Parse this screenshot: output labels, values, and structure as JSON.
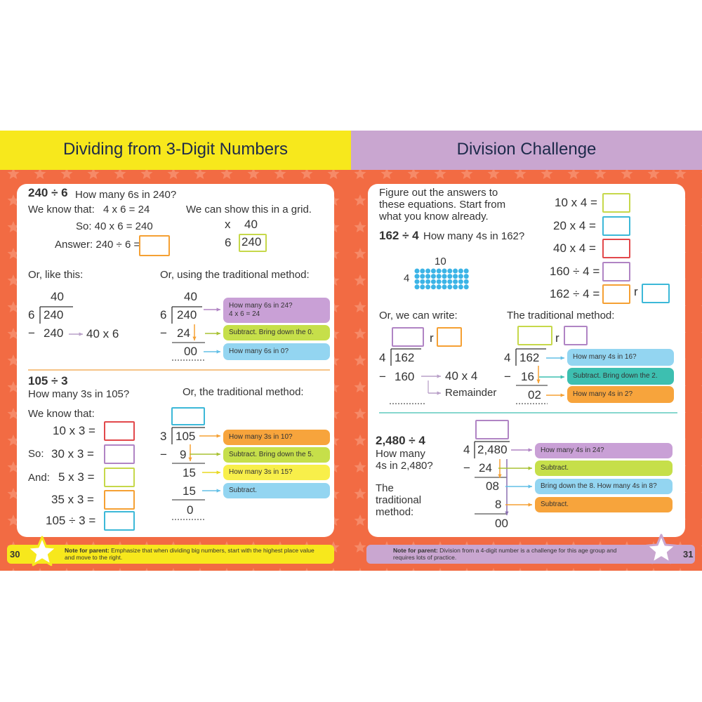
{
  "left_page": {
    "title": "Dividing from 3-Digit Numbers",
    "page_number": "30",
    "note": {
      "label": "Note for parent:",
      "text": "Emphasize that when dividing big numbers, start with the highest place value and move to the right."
    },
    "example_1": {
      "problem": "240 ÷ 6",
      "question": "How many 6s in 240?",
      "we_know_label": "We know that:",
      "we_know": "4 x 6  = 24",
      "so": "So:  40 x 6  = 240",
      "answer": "Answer: 240 ÷ 6 =",
      "grid_intro": "We can show this in a grid.",
      "grid": {
        "sign": "x",
        "column": "40",
        "row": "6",
        "cell": "240"
      },
      "like_this_label": "Or, like this:",
      "like_this": {
        "quotient": "40",
        "divisor": "6",
        "dividend": "240",
        "minus": "−",
        "subtracted": "240",
        "note": "40 x 6"
      },
      "traditional_label": "Or, using the traditional method:",
      "traditional": {
        "quotient": "40",
        "divisor": "6",
        "dividend": "240",
        "minus": "−",
        "subtracted": "24",
        "result": "00"
      },
      "steps": [
        "How many 6s in 24?\n4 x 6 = 24",
        "Subtract. Bring down the 0.",
        "How many 6s in 0?"
      ]
    },
    "example_2": {
      "problem": "105 ÷ 3",
      "question": "How many 3s in 105?",
      "we_know_label": "We know that:",
      "so_label": "So:",
      "and_label": "And:",
      "facts": [
        "10 x 3 =",
        "30 x 3 =",
        "5 x 3 =",
        "35 x 3 =",
        "105 ÷ 3 ="
      ],
      "traditional_label": "Or, the traditional method:",
      "traditional": {
        "divisor": "3",
        "dividend": "105",
        "minus": "−",
        "product": "9",
        "bring_down": "15",
        "product_2": "15",
        "remainder": "0"
      },
      "steps": [
        "How many 3s in 10?",
        "Subtract. Bring down the 5.",
        "How many 3s in 15?",
        "Subtract."
      ]
    }
  },
  "right_page": {
    "title": "Division Challenge",
    "page_number": "31",
    "note": {
      "label": "Note for parent:",
      "text": "Division from a 4-digit number is a challenge for this age group and requires lots of practice."
    },
    "intro": "Figure out the answers to these equations. Start from what you know already.",
    "equations": [
      "10 x 4 =",
      "20 x 4 =",
      "40 x 4 =",
      "160 ÷ 4 =",
      "162 ÷ 4 ="
    ],
    "remainder_sign": "r",
    "example_1": {
      "problem": "162 ÷ 4",
      "question": "How many 4s in 162?",
      "array": {
        "columns": "10",
        "rows": "4"
      },
      "write_label": "Or, we can write:",
      "written": {
        "divisor": "4",
        "dividend": "162",
        "minus": "−",
        "subtracted": "160",
        "note": "40 x 4",
        "remainder_label": "Remainder"
      },
      "traditional_label": "The traditional method:",
      "traditional": {
        "divisor": "4",
        "dividend": "162",
        "minus": "−",
        "subtracted": "16",
        "result": "02"
      },
      "steps": [
        "How many 4s in 16?",
        "Subtract. Bring down the 2.",
        "How many 4s in 2?"
      ]
    },
    "example_2": {
      "problem": "2,480 ÷ 4",
      "question": "How many 4s in 2,480?",
      "method_label": "The traditional method:",
      "traditional": {
        "divisor": "4",
        "dividend": "2,480",
        "minus": "−",
        "subtracted": "24",
        "bring_down": "08",
        "product": "8",
        "result": "00"
      },
      "steps": [
        "How many 4s in 24?",
        "Subtract.",
        "Bring down the 8. How many 4s in 8?",
        "Subtract."
      ]
    }
  }
}
